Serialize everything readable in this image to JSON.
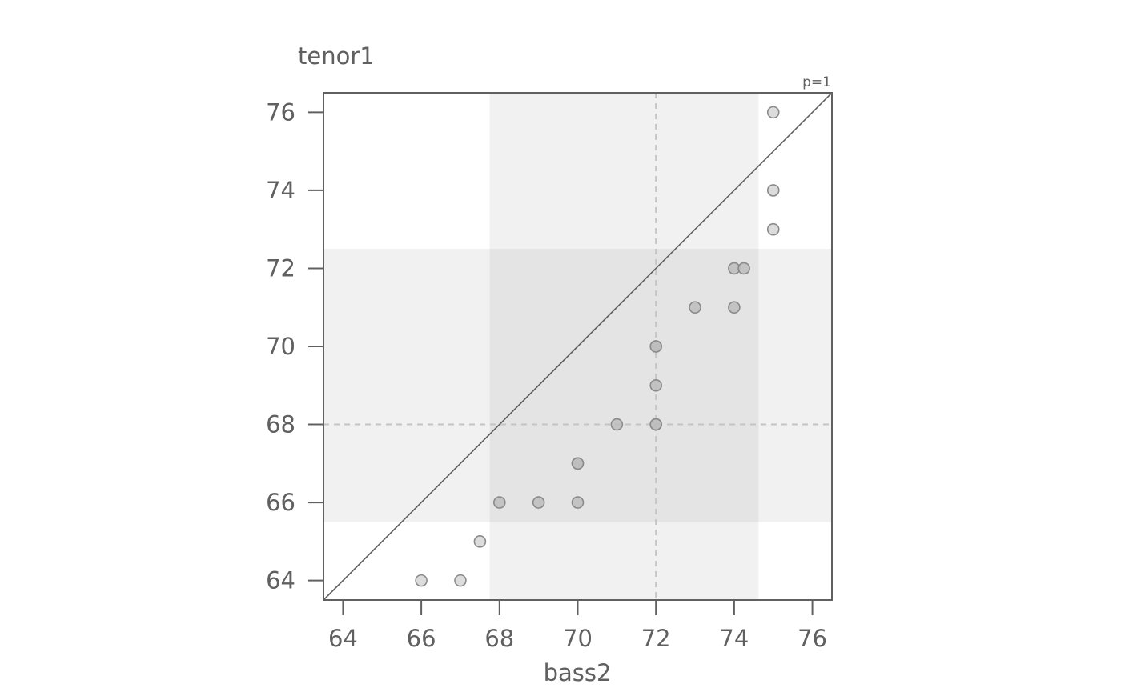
{
  "chart_data": {
    "type": "scatter",
    "title": "",
    "xlabel": "bass2",
    "ylabel": "tenor1",
    "corner_label": "p=1",
    "xlim": [
      63.5,
      76.5
    ],
    "ylim": [
      63.5,
      76.5
    ],
    "x_ticks": [
      64,
      66,
      68,
      70,
      72,
      74,
      76
    ],
    "y_ticks": [
      64,
      66,
      68,
      70,
      72,
      74,
      76
    ],
    "reference_line": "identity (y = x)",
    "median_x": 72,
    "median_y": 68,
    "x_band": [
      67.75,
      74.625
    ],
    "y_band": [
      65.5,
      72.5
    ],
    "points": [
      {
        "x": 75,
        "y": 76
      },
      {
        "x": 75,
        "y": 74
      },
      {
        "x": 75,
        "y": 73
      },
      {
        "x": 74,
        "y": 72
      },
      {
        "x": 74.25,
        "y": 72
      },
      {
        "x": 73,
        "y": 71
      },
      {
        "x": 74,
        "y": 71
      },
      {
        "x": 72,
        "y": 70
      },
      {
        "x": 72,
        "y": 70
      },
      {
        "x": 72,
        "y": 69
      },
      {
        "x": 71,
        "y": 68
      },
      {
        "x": 72,
        "y": 68
      },
      {
        "x": 72,
        "y": 68
      },
      {
        "x": 70,
        "y": 67
      },
      {
        "x": 70,
        "y": 67
      },
      {
        "x": 68,
        "y": 66
      },
      {
        "x": 69,
        "y": 66
      },
      {
        "x": 70,
        "y": 66
      },
      {
        "x": 67.5,
        "y": 65
      },
      {
        "x": 66,
        "y": 64
      },
      {
        "x": 67,
        "y": 64
      }
    ],
    "grid": false,
    "colors": {
      "axis": "#606060",
      "band": "#f1f1f1",
      "band_overlap": "#e4e4e4",
      "median_line": "#c4c4c4",
      "point_inner_fill": "#bdbdbd",
      "point_outer_fill": "#d6d6d6",
      "point_stroke": "#8a8a8a"
    }
  }
}
